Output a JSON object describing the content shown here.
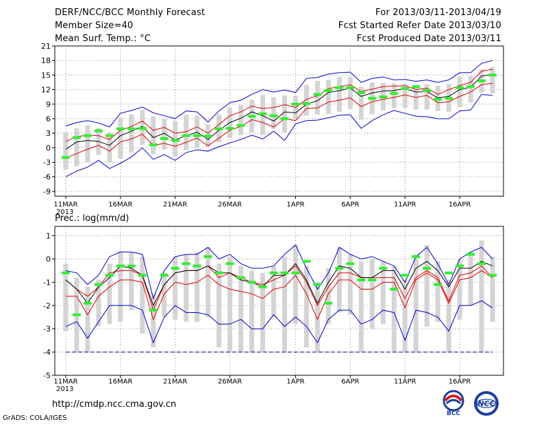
{
  "header": {
    "title": "DERF/NCC/BCC Monthly Forecast",
    "member_size": "Member Size=40",
    "variable": "Mean Surf. Temp.: °C",
    "period": "For 2013/03/11-2013/04/19",
    "started": "Fcst Started Refer Date 2013/03/10",
    "produced": "Fcst Produced Date 2013/03/11"
  },
  "footer": {
    "url": "http://cmdp.ncc.cma.gov.cn",
    "grads": "GrADS: COLA/IGES",
    "logos": [
      {
        "icon": "bcc-logo-icon",
        "text": "BCC"
      },
      {
        "icon": "ncc-logo-icon",
        "text": "NCC"
      }
    ]
  },
  "colors": {
    "mean": "#000000",
    "spread": "#dd0000",
    "extreme": "#0000cc",
    "box": "#d4d4d4",
    "marker": "#33ee33",
    "grid": "#888888",
    "threshold": "#000099"
  },
  "chart_data": [
    {
      "type": "line",
      "id": "temperature",
      "title": "Mean Surf. Temp.: °C",
      "ylabel": "°C",
      "ylim": [
        -10,
        21
      ],
      "yticks": [
        -9,
        -6,
        -3,
        0,
        3,
        6,
        9,
        12,
        15,
        18,
        21
      ],
      "xlim": [
        0,
        41
      ],
      "xticks": [
        {
          "x": 1,
          "label": "11MAR",
          "sub": "2013"
        },
        {
          "x": 6,
          "label": "16MAR"
        },
        {
          "x": 11,
          "label": "21MAR"
        },
        {
          "x": 16,
          "label": "26MAR"
        },
        {
          "x": 22,
          "label": "1APR"
        },
        {
          "x": 27,
          "label": "6APR"
        },
        {
          "x": 32,
          "label": "11APR"
        },
        {
          "x": 37,
          "label": "16APR"
        }
      ],
      "days": [
        1,
        2,
        3,
        4,
        5,
        6,
        7,
        8,
        9,
        10,
        11,
        12,
        13,
        14,
        15,
        16,
        17,
        18,
        19,
        20,
        21,
        22,
        23,
        24,
        25,
        26,
        27,
        28,
        29,
        30,
        31,
        32,
        33,
        34,
        35,
        36,
        37,
        38,
        39,
        40
      ],
      "series": [
        {
          "name": "max",
          "style": "extreme",
          "values": [
            4.5,
            5.2,
            5.6,
            5.1,
            4.3,
            7.1,
            7.7,
            8.4,
            7.2,
            6.6,
            6.0,
            7.6,
            7.4,
            5.3,
            7.6,
            9.3,
            9.8,
            11.0,
            12.0,
            11.5,
            11.9,
            11.4,
            14.3,
            14.5,
            15.2,
            15.5,
            15.6,
            13.5,
            14.3,
            14.6,
            14.0,
            14.1,
            13.7,
            14.0,
            13.5,
            14.0,
            15.5,
            15.5,
            17.4,
            18.0
          ]
        },
        {
          "name": "upper",
          "style": "spread",
          "values": [
            1.3,
            2.3,
            2.6,
            2.5,
            1.7,
            3.6,
            4.4,
            5.5,
            3.6,
            4.2,
            3.0,
            3.3,
            4.3,
            3.0,
            4.8,
            6.6,
            7.4,
            8.6,
            8.1,
            8.3,
            8.9,
            8.3,
            10.0,
            10.7,
            12.2,
            12.6,
            13.0,
            11.6,
            12.1,
            12.6,
            12.7,
            12.8,
            12.0,
            12.3,
            11.0,
            12.0,
            12.8,
            13.5,
            15.8,
            16.2
          ]
        },
        {
          "name": "mean",
          "style": "mean",
          "values": [
            -0.3,
            1.2,
            1.5,
            1.3,
            0.5,
            2.5,
            3.4,
            4.4,
            2.1,
            3.0,
            1.6,
            2.5,
            3.2,
            1.7,
            3.6,
            5.2,
            6.1,
            7.4,
            6.6,
            5.5,
            7.4,
            7.2,
            9.0,
            9.7,
            11.4,
            11.8,
            12.3,
            10.6,
            11.3,
            11.7,
            11.8,
            12.2,
            11.5,
            11.6,
            10.3,
            10.6,
            12.0,
            12.5,
            14.8,
            15.1
          ]
        },
        {
          "name": "lower",
          "style": "spread",
          "values": [
            -2.1,
            -1.2,
            -0.3,
            0.5,
            -0.7,
            1.2,
            1.8,
            2.8,
            0.5,
            0.9,
            0.3,
            1.1,
            2.0,
            0.4,
            2.0,
            3.6,
            4.4,
            5.8,
            5.2,
            4.3,
            6.0,
            5.6,
            8.1,
            8.2,
            9.4,
            9.8,
            10.3,
            8.5,
            9.5,
            10.0,
            10.4,
            10.9,
            10.4,
            10.8,
            9.3,
            9.5,
            10.6,
            11.5,
            13.0,
            13.3
          ]
        },
        {
          "name": "min",
          "style": "extreme",
          "values": [
            -6.0,
            -4.8,
            -4.0,
            -2.6,
            -4.3,
            -3.2,
            -1.9,
            0.0,
            -2.4,
            -1.4,
            -2.6,
            -1.0,
            -0.4,
            -0.7,
            0.2,
            1.0,
            1.7,
            2.6,
            1.8,
            3.4,
            1.5,
            4.9,
            5.6,
            5.7,
            6.2,
            6.7,
            6.8,
            4.0,
            5.6,
            6.8,
            7.7,
            7.1,
            6.5,
            6.4,
            6.0,
            6.0,
            7.6,
            7.8,
            11.0,
            10.8
          ]
        }
      ],
      "boxes": {
        "low": [
          -4.5,
          -3.8,
          -3.0,
          -1.5,
          -3.0,
          -2.2,
          -1.0,
          0.6,
          -1.4,
          -0.4,
          -1.8,
          -0.5,
          0.0,
          0.2,
          1.1,
          2.0,
          2.6,
          3.2,
          2.6,
          3.9,
          3.2,
          5.8,
          6.6,
          6.8,
          7.0,
          7.4,
          8.0,
          5.8,
          6.9,
          7.7,
          8.2,
          8.2,
          7.9,
          7.9,
          7.6,
          7.4,
          8.4,
          9.3,
          11.4,
          11.2
        ],
        "high": [
          3.2,
          4.0,
          4.6,
          4.1,
          3.2,
          6.2,
          6.9,
          7.8,
          6.5,
          6.0,
          5.5,
          6.8,
          6.6,
          4.8,
          6.9,
          8.3,
          8.8,
          9.9,
          10.9,
          10.4,
          10.8,
          10.7,
          13.0,
          13.8,
          14.0,
          14.6,
          14.6,
          12.6,
          13.5,
          13.4,
          13.3,
          13.2,
          12.8,
          13.1,
          12.8,
          13.2,
          14.6,
          14.8,
          16.2,
          16.6
        ]
      },
      "markers": [
        -2.0,
        2.1,
        2.5,
        3.5,
        2.5,
        3.9,
        3.9,
        4.0,
        0.6,
        1.9,
        1.5,
        2.5,
        2.5,
        2.4,
        3.9,
        4.0,
        4.6,
        6.5,
        7.0,
        6.6,
        6.0,
        9.0,
        9.1,
        11.0,
        11.8,
        12.4,
        12.4,
        11.4,
        10.2,
        10.5,
        11.2,
        12.2,
        12.6,
        11.8,
        10.0,
        10.2,
        12.4,
        12.6,
        13.8,
        15.0
      ]
    },
    {
      "type": "line",
      "id": "precipitation",
      "title": "Prec.: log(mm/d)",
      "ylabel": "log(mm/d)",
      "ylim": [
        -5,
        1.4
      ],
      "yticks": [
        -5,
        -4,
        -3,
        -2,
        -1,
        0,
        1
      ],
      "xlim": [
        0,
        41
      ],
      "xticks": [
        {
          "x": 1,
          "label": "11MAR",
          "sub": "2013"
        },
        {
          "x": 6,
          "label": "16MAR"
        },
        {
          "x": 11,
          "label": "21MAR"
        },
        {
          "x": 16,
          "label": "26MAR"
        },
        {
          "x": 22,
          "label": "1APR"
        },
        {
          "x": 27,
          "label": "6APR"
        },
        {
          "x": 32,
          "label": "11APR"
        },
        {
          "x": 37,
          "label": "16APR"
        }
      ],
      "days": [
        1,
        2,
        3,
        4,
        5,
        6,
        7,
        8,
        9,
        10,
        11,
        12,
        13,
        14,
        15,
        16,
        17,
        18,
        19,
        20,
        21,
        22,
        23,
        24,
        25,
        26,
        27,
        28,
        29,
        30,
        31,
        32,
        33,
        34,
        35,
        36,
        37,
        38,
        39,
        40
      ],
      "threshold": -4.0,
      "series": [
        {
          "name": "max",
          "style": "extreme",
          "values": [
            -0.5,
            -0.6,
            -1.1,
            -0.7,
            0.1,
            0.3,
            0.3,
            0.2,
            -1.7,
            -0.5,
            0.1,
            0.2,
            0.2,
            0.5,
            0.0,
            0.2,
            -0.2,
            -0.4,
            -0.4,
            -0.3,
            0.2,
            0.6,
            -0.4,
            -1.3,
            -0.6,
            0.5,
            0.2,
            0.0,
            0.1,
            -0.1,
            -0.3,
            -1.0,
            0.1,
            0.5,
            -0.2,
            -1.1,
            0.0,
            0.3,
            0.5,
            0.0
          ]
        },
        {
          "name": "upper",
          "style": "spread",
          "values": [
            -0.9,
            -1.3,
            -1.6,
            -1.2,
            -0.6,
            -0.5,
            -0.5,
            -0.7,
            -2.2,
            -1.1,
            -0.6,
            -0.5,
            -0.5,
            -0.3,
            -0.8,
            -0.6,
            -0.8,
            -1.0,
            -1.1,
            -0.9,
            -0.7,
            -0.3,
            -1.0,
            -2.0,
            -1.2,
            -0.6,
            -0.6,
            -0.8,
            -0.8,
            -0.8,
            -0.8,
            -1.7,
            -0.8,
            -0.5,
            -0.8,
            -1.8,
            -0.7,
            -0.6,
            -0.3,
            -0.8
          ]
        },
        {
          "name": "mean",
          "style": "mean",
          "values": [
            -0.9,
            -1.3,
            -1.9,
            -1.2,
            -0.8,
            -0.3,
            -0.4,
            -0.7,
            -2.0,
            -1.1,
            -0.6,
            -0.5,
            -0.5,
            -0.3,
            -0.6,
            -0.6,
            -0.9,
            -1.0,
            -1.2,
            -0.7,
            -0.7,
            -0.2,
            -0.9,
            -1.9,
            -1.0,
            -0.3,
            -0.4,
            -0.8,
            -0.8,
            -0.5,
            -0.5,
            -1.3,
            -0.4,
            -0.1,
            -0.5,
            -1.2,
            -0.4,
            -0.4,
            -0.1,
            -0.3
          ]
        },
        {
          "name": "lower",
          "style": "spread",
          "values": [
            -1.6,
            -1.6,
            -2.4,
            -1.6,
            -1.2,
            -0.9,
            -0.9,
            -1.0,
            -2.6,
            -1.5,
            -1.0,
            -1.1,
            -1.0,
            -0.7,
            -1.1,
            -1.3,
            -1.4,
            -1.5,
            -1.7,
            -1.3,
            -1.2,
            -0.7,
            -1.5,
            -2.6,
            -1.5,
            -0.9,
            -0.9,
            -1.3,
            -1.3,
            -1.0,
            -1.0,
            -2.1,
            -0.9,
            -0.6,
            -0.9,
            -1.9,
            -0.9,
            -0.8,
            -0.5,
            -0.8
          ]
        },
        {
          "name": "min",
          "style": "extreme",
          "values": [
            -2.9,
            -2.7,
            -3.4,
            -2.7,
            -2.0,
            -2.0,
            -2.0,
            -2.2,
            -3.6,
            -2.5,
            -2.0,
            -2.3,
            -2.3,
            -2.4,
            -2.8,
            -2.8,
            -2.6,
            -3.0,
            -3.0,
            -2.4,
            -2.9,
            -2.5,
            -2.9,
            -3.6,
            -2.6,
            -2.2,
            -2.2,
            -2.8,
            -2.6,
            -2.2,
            -2.3,
            -3.5,
            -2.2,
            -2.3,
            -2.5,
            -3.1,
            -2.0,
            -2.0,
            -1.8,
            -2.1
          ]
        }
      ],
      "boxes": {
        "low": [
          -3.1,
          -4.0,
          -4.0,
          -2.9,
          -2.8,
          -2.7,
          -2.2,
          -3.2,
          -3.8,
          -2.5,
          -2.6,
          -2.7,
          -2.7,
          -2.5,
          -3.8,
          -4.0,
          -4.0,
          -4.0,
          -4.0,
          -2.5,
          -4.0,
          -2.8,
          -3.8,
          -4.0,
          -2.8,
          -2.3,
          -2.4,
          -4.0,
          -3.0,
          -2.8,
          -4.0,
          -4.0,
          -4.0,
          -2.9,
          -2.7,
          -4.0,
          -2.6,
          -2.0,
          -4.0,
          -2.7
        ],
        "high": [
          -0.2,
          -0.8,
          -1.2,
          -0.9,
          -0.2,
          0.3,
          0.3,
          0.1,
          -1.5,
          -0.6,
          0.1,
          0.2,
          0.3,
          0.5,
          -0.2,
          0.1,
          -0.3,
          -0.5,
          -0.6,
          -0.3,
          0.1,
          0.6,
          -0.3,
          -1.0,
          -0.4,
          0.5,
          0.2,
          -0.1,
          0.0,
          -0.1,
          -0.3,
          -0.9,
          0.2,
          0.6,
          -0.1,
          -0.9,
          0.0,
          0.3,
          0.8,
          0.1
        ]
      },
      "markers": [
        -0.6,
        -2.4,
        -1.9,
        -1.1,
        -0.7,
        -0.3,
        -0.3,
        -0.7,
        -2.2,
        -0.7,
        -0.4,
        -0.2,
        -0.3,
        0.1,
        -0.6,
        -0.2,
        -0.8,
        -1.0,
        -1.2,
        -0.6,
        -0.6,
        -0.6,
        -0.1,
        -1.1,
        -1.9,
        -0.4,
        -0.2,
        -0.9,
        -0.9,
        -0.4,
        -1.3,
        -0.7,
        0.1,
        -0.4,
        -1.1,
        -0.6,
        -0.3,
        0.2,
        -0.2,
        -0.7
      ]
    }
  ]
}
